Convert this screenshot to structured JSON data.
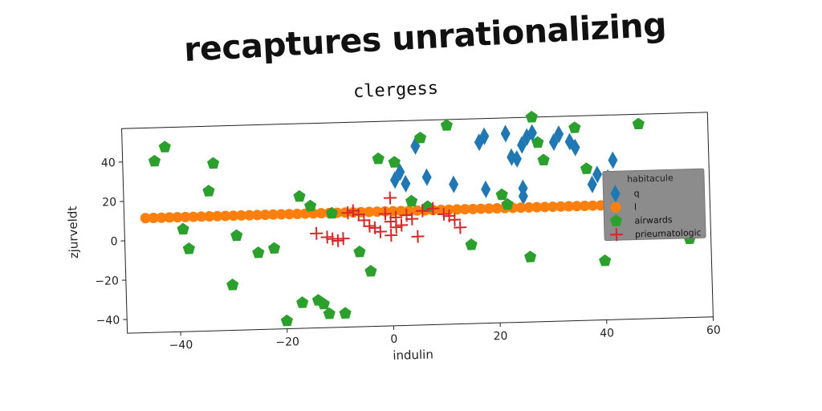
{
  "banner": "recaptures unrationalizing",
  "chart_data": {
    "type": "scatter",
    "title": "clergess",
    "xlabel": "indulin",
    "ylabel": "zjurveldt",
    "xlim": [
      -50,
      60
    ],
    "ylim": [
      -47,
      57
    ],
    "xticks": [
      -40,
      -20,
      0,
      20,
      40,
      60
    ],
    "yticks": [
      -40,
      -20,
      0,
      20,
      40
    ],
    "grid": false,
    "legend_position": "right",
    "legend_title": "habitacule",
    "series": [
      {
        "name": "q",
        "marker": "diamond",
        "color": "#1f77b4",
        "points": [
          [
            1,
            27
          ],
          [
            2,
            31
          ],
          [
            3,
            25
          ],
          [
            5,
            44
          ],
          [
            7,
            28
          ],
          [
            12,
            24
          ],
          [
            17,
            45
          ],
          [
            18,
            48
          ],
          [
            18,
            21
          ],
          [
            22,
            49
          ],
          [
            23,
            37
          ],
          [
            24,
            36
          ],
          [
            25,
            17
          ],
          [
            25,
            21
          ],
          [
            25,
            43
          ],
          [
            26,
            47
          ],
          [
            27,
            49
          ],
          [
            31,
            44
          ],
          [
            32,
            48
          ],
          [
            34,
            44
          ],
          [
            35,
            41
          ],
          [
            38,
            22
          ],
          [
            39,
            27
          ],
          [
            41,
            25
          ],
          [
            42,
            34
          ]
        ]
      },
      {
        "name": "l",
        "marker": "circle",
        "color": "#ff7f0e",
        "x_start": -46,
        "x_step": 1.5,
        "count": 61,
        "y": 11.2
      },
      {
        "name": "airwards",
        "marker": "pentagon",
        "color": "#2ca02c",
        "points": [
          [
            -44,
            40
          ],
          [
            -42,
            47
          ],
          [
            -39,
            5
          ],
          [
            -38,
            -5
          ],
          [
            -34,
            24
          ],
          [
            -33,
            38
          ],
          [
            -30,
            -24
          ],
          [
            -29,
            1
          ],
          [
            -25,
            -8
          ],
          [
            -22,
            -6
          ],
          [
            -20,
            -43
          ],
          [
            -17,
            -34
          ],
          [
            -17,
            20
          ],
          [
            -15,
            15
          ],
          [
            -14,
            -33
          ],
          [
            -13,
            -35
          ],
          [
            -12,
            -40
          ],
          [
            -11,
            11
          ],
          [
            -9,
            -40
          ],
          [
            -6,
            -9
          ],
          [
            -4,
            -19
          ],
          [
            -2,
            38
          ],
          [
            1,
            36
          ],
          [
            4,
            16
          ],
          [
            6,
            48
          ],
          [
            7,
            13
          ],
          [
            11,
            54
          ],
          [
            15,
            -7
          ],
          [
            21,
            18
          ],
          [
            22,
            13
          ],
          [
            26,
            -14
          ],
          [
            27,
            57
          ],
          [
            28,
            44
          ],
          [
            29,
            35
          ],
          [
            35,
            51
          ],
          [
            37,
            30
          ],
          [
            40,
            -17
          ],
          [
            47,
            52
          ],
          [
            56,
            -7
          ]
        ]
      },
      {
        "name": "prieumatologic",
        "marker": "plus",
        "color": "#d62728",
        "points": [
          [
            -14,
            1
          ],
          [
            -12,
            -1
          ],
          [
            -11,
            -2
          ],
          [
            -10,
            -3
          ],
          [
            -9,
            -2
          ],
          [
            -8,
            11
          ],
          [
            -7,
            12
          ],
          [
            -6,
            10
          ],
          [
            -5,
            7
          ],
          [
            -4,
            4
          ],
          [
            -3,
            3
          ],
          [
            -2,
            1
          ],
          [
            -1,
            10
          ],
          [
            0,
            -1
          ],
          [
            0,
            6
          ],
          [
            0,
            18
          ],
          [
            1,
            8
          ],
          [
            1,
            3
          ],
          [
            2,
            4
          ],
          [
            3,
            9
          ],
          [
            4,
            7
          ],
          [
            5,
            -2
          ],
          [
            6,
            11
          ],
          [
            8,
            12
          ],
          [
            10,
            9
          ],
          [
            11,
            8
          ],
          [
            12,
            6
          ],
          [
            13,
            2
          ]
        ]
      }
    ]
  },
  "colors": {
    "legend_bg": "#8c8c8c",
    "axis": "#222222"
  }
}
